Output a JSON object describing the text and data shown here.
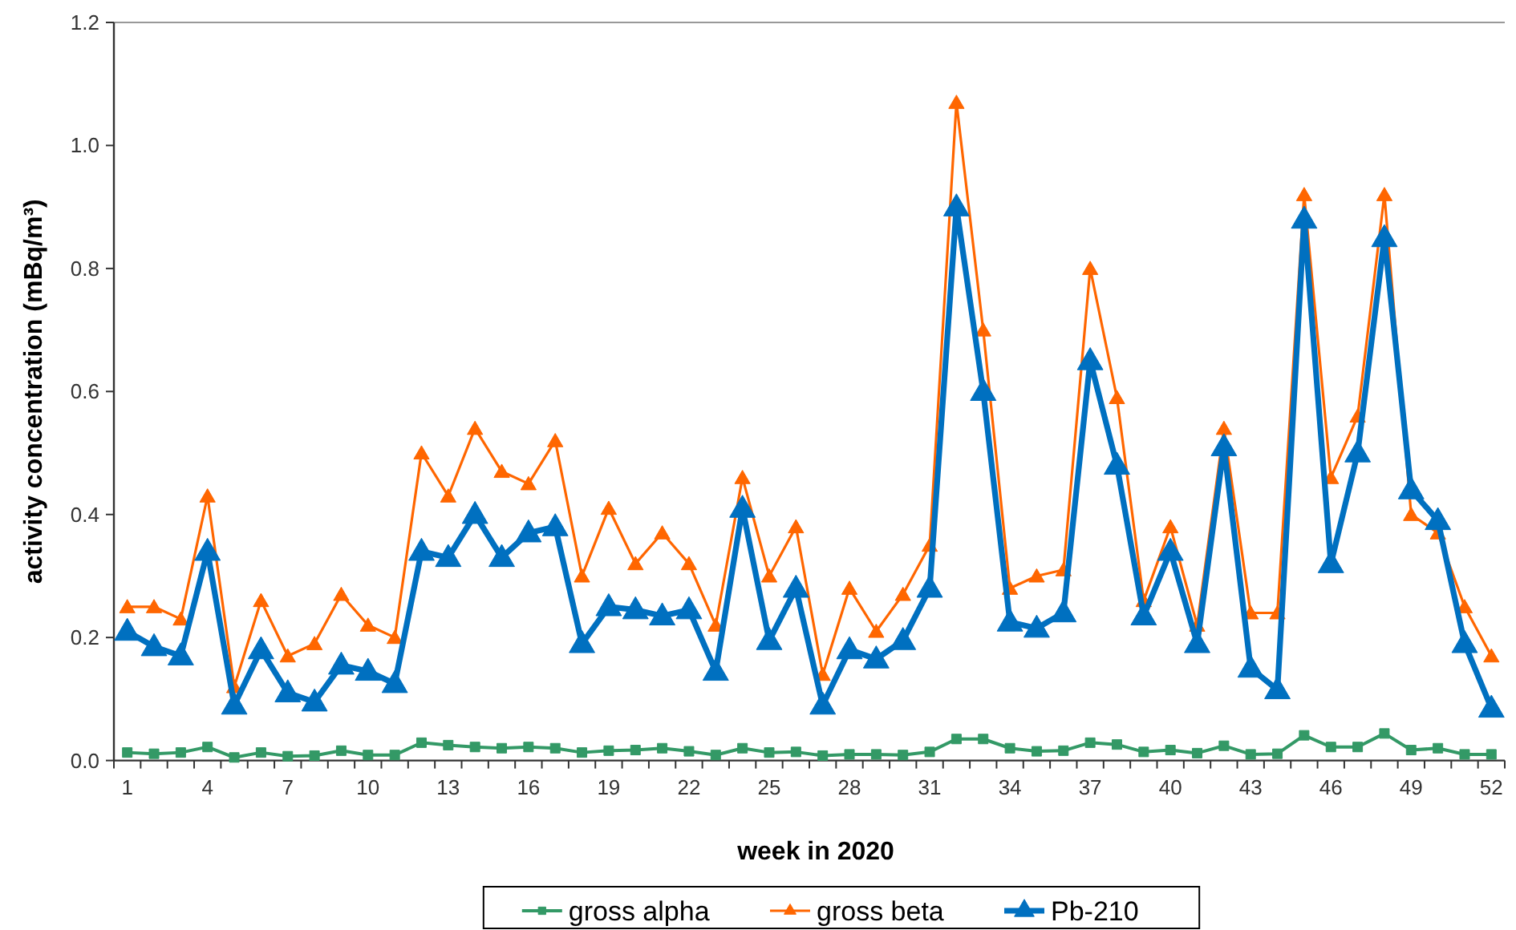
{
  "chart_data": {
    "type": "line",
    "xlabel": "week in 2020",
    "ylabel": "activity concentration (mBq/m³)",
    "categories": [
      "1",
      null,
      null,
      "4",
      null,
      null,
      "7",
      null,
      null,
      "10",
      null,
      null,
      "13",
      null,
      null,
      "16",
      null,
      null,
      "19",
      null,
      null,
      "22",
      null,
      null,
      "25",
      null,
      null,
      "28",
      null,
      null,
      "31",
      null,
      null,
      "34",
      null,
      null,
      "37",
      null,
      null,
      "40",
      null,
      null,
      "43",
      null,
      null,
      "46",
      null,
      null,
      "49",
      null,
      null,
      "52"
    ],
    "ylim": [
      0,
      1.2
    ],
    "yticks": [
      {
        "value": 0,
        "label": "0.0"
      },
      0.2,
      0.4,
      0.6,
      0.8,
      {
        "value": 1,
        "label": "1.0"
      },
      1.2
    ],
    "grid": false,
    "legend": "bottom",
    "line_style": "solid",
    "series": [
      {
        "name": "gross alpha",
        "color": "#339966",
        "marker": "square",
        "values": [
          0.013,
          0.011,
          0.013,
          0.022,
          0.005,
          0.013,
          0.007,
          0.008,
          0.016,
          0.009,
          0.009,
          0.029,
          0.025,
          0.022,
          0.02,
          0.022,
          0.02,
          0.013,
          0.016,
          0.017,
          0.02,
          0.015,
          0.009,
          0.02,
          0.013,
          0.014,
          0.008,
          0.01,
          0.01,
          0.009,
          0.014,
          0.035,
          0.035,
          0.02,
          0.015,
          0.016,
          0.029,
          0.026,
          0.014,
          0.017,
          0.012,
          0.024,
          0.01,
          0.011,
          0.041,
          0.022,
          0.022,
          0.044,
          0.017,
          0.02,
          0.01,
          0.01
        ]
      },
      {
        "name": "gross beta",
        "color": "#ff6600",
        "marker": "triangle",
        "values": [
          0.25,
          0.25,
          0.23,
          0.43,
          0.12,
          0.26,
          0.17,
          0.19,
          0.27,
          0.22,
          0.2,
          0.5,
          0.43,
          0.54,
          0.47,
          0.45,
          0.52,
          0.3,
          0.41,
          0.32,
          0.37,
          0.32,
          0.22,
          0.46,
          0.3,
          0.38,
          0.14,
          0.28,
          0.21,
          0.27,
          0.35,
          1.07,
          0.7,
          0.28,
          0.3,
          0.31,
          0.8,
          0.59,
          0.26,
          0.38,
          0.22,
          0.54,
          0.24,
          0.24,
          0.92,
          0.46,
          0.56,
          0.92,
          0.4,
          0.37,
          0.25,
          0.17
        ]
      },
      {
        "name": "Pb-210",
        "color": "#0070c0",
        "marker": "triangle",
        "values": [
          0.21,
          0.185,
          0.17,
          0.34,
          0.09,
          0.18,
          0.11,
          0.095,
          0.155,
          0.145,
          0.125,
          0.34,
          0.33,
          0.4,
          0.33,
          0.37,
          0.38,
          0.19,
          0.25,
          0.245,
          0.235,
          0.245,
          0.145,
          0.41,
          0.195,
          0.28,
          0.09,
          0.18,
          0.165,
          0.195,
          0.28,
          0.9,
          0.6,
          0.225,
          0.215,
          0.24,
          0.65,
          0.48,
          0.235,
          0.34,
          0.19,
          0.51,
          0.15,
          0.115,
          0.88,
          0.32,
          0.5,
          0.85,
          0.44,
          0.39,
          0.19,
          0.085
        ]
      }
    ]
  }
}
